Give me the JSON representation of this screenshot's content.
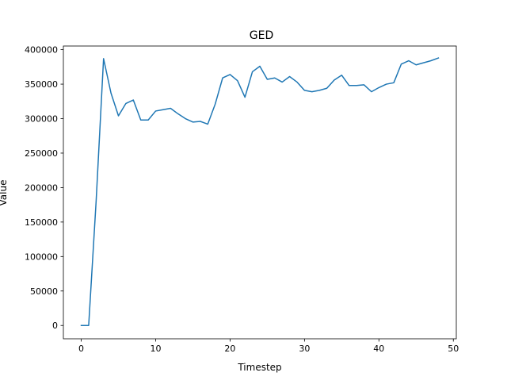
{
  "chart_data": {
    "type": "line",
    "title": "GED",
    "xlabel": "Timestep",
    "ylabel": "Value",
    "xlim": [
      -2.4,
      50.4
    ],
    "ylim": [
      -19300,
      405300
    ],
    "xticks": [
      0,
      10,
      20,
      30,
      40,
      50
    ],
    "yticks": [
      0,
      50000,
      100000,
      150000,
      200000,
      250000,
      300000,
      350000,
      400000
    ],
    "grid": false,
    "series": [
      {
        "color": "#1f77b4",
        "x": [
          0,
          1,
          2,
          3,
          4,
          5,
          6,
          7,
          8,
          9,
          10,
          11,
          12,
          13,
          14,
          15,
          16,
          17,
          18,
          19,
          20,
          21,
          22,
          23,
          24,
          25,
          26,
          27,
          28,
          29,
          30,
          31,
          32,
          33,
          34,
          35,
          36,
          37,
          38,
          39,
          40,
          41,
          42,
          43,
          44,
          45,
          46,
          47,
          48
        ],
        "y": [
          0,
          0,
          180000,
          387000,
          337000,
          304000,
          322000,
          327000,
          298000,
          298000,
          311000,
          313000,
          315000,
          307000,
          300000,
          295000,
          296000,
          292000,
          321000,
          359000,
          364000,
          355000,
          331000,
          368000,
          376000,
          357000,
          359000,
          353000,
          361000,
          353000,
          341000,
          339000,
          341000,
          344000,
          356000,
          363000,
          348000,
          348000,
          349000,
          339000,
          345000,
          350000,
          352000,
          379000,
          384000,
          378000,
          381000,
          384000,
          388000
        ]
      }
    ]
  }
}
